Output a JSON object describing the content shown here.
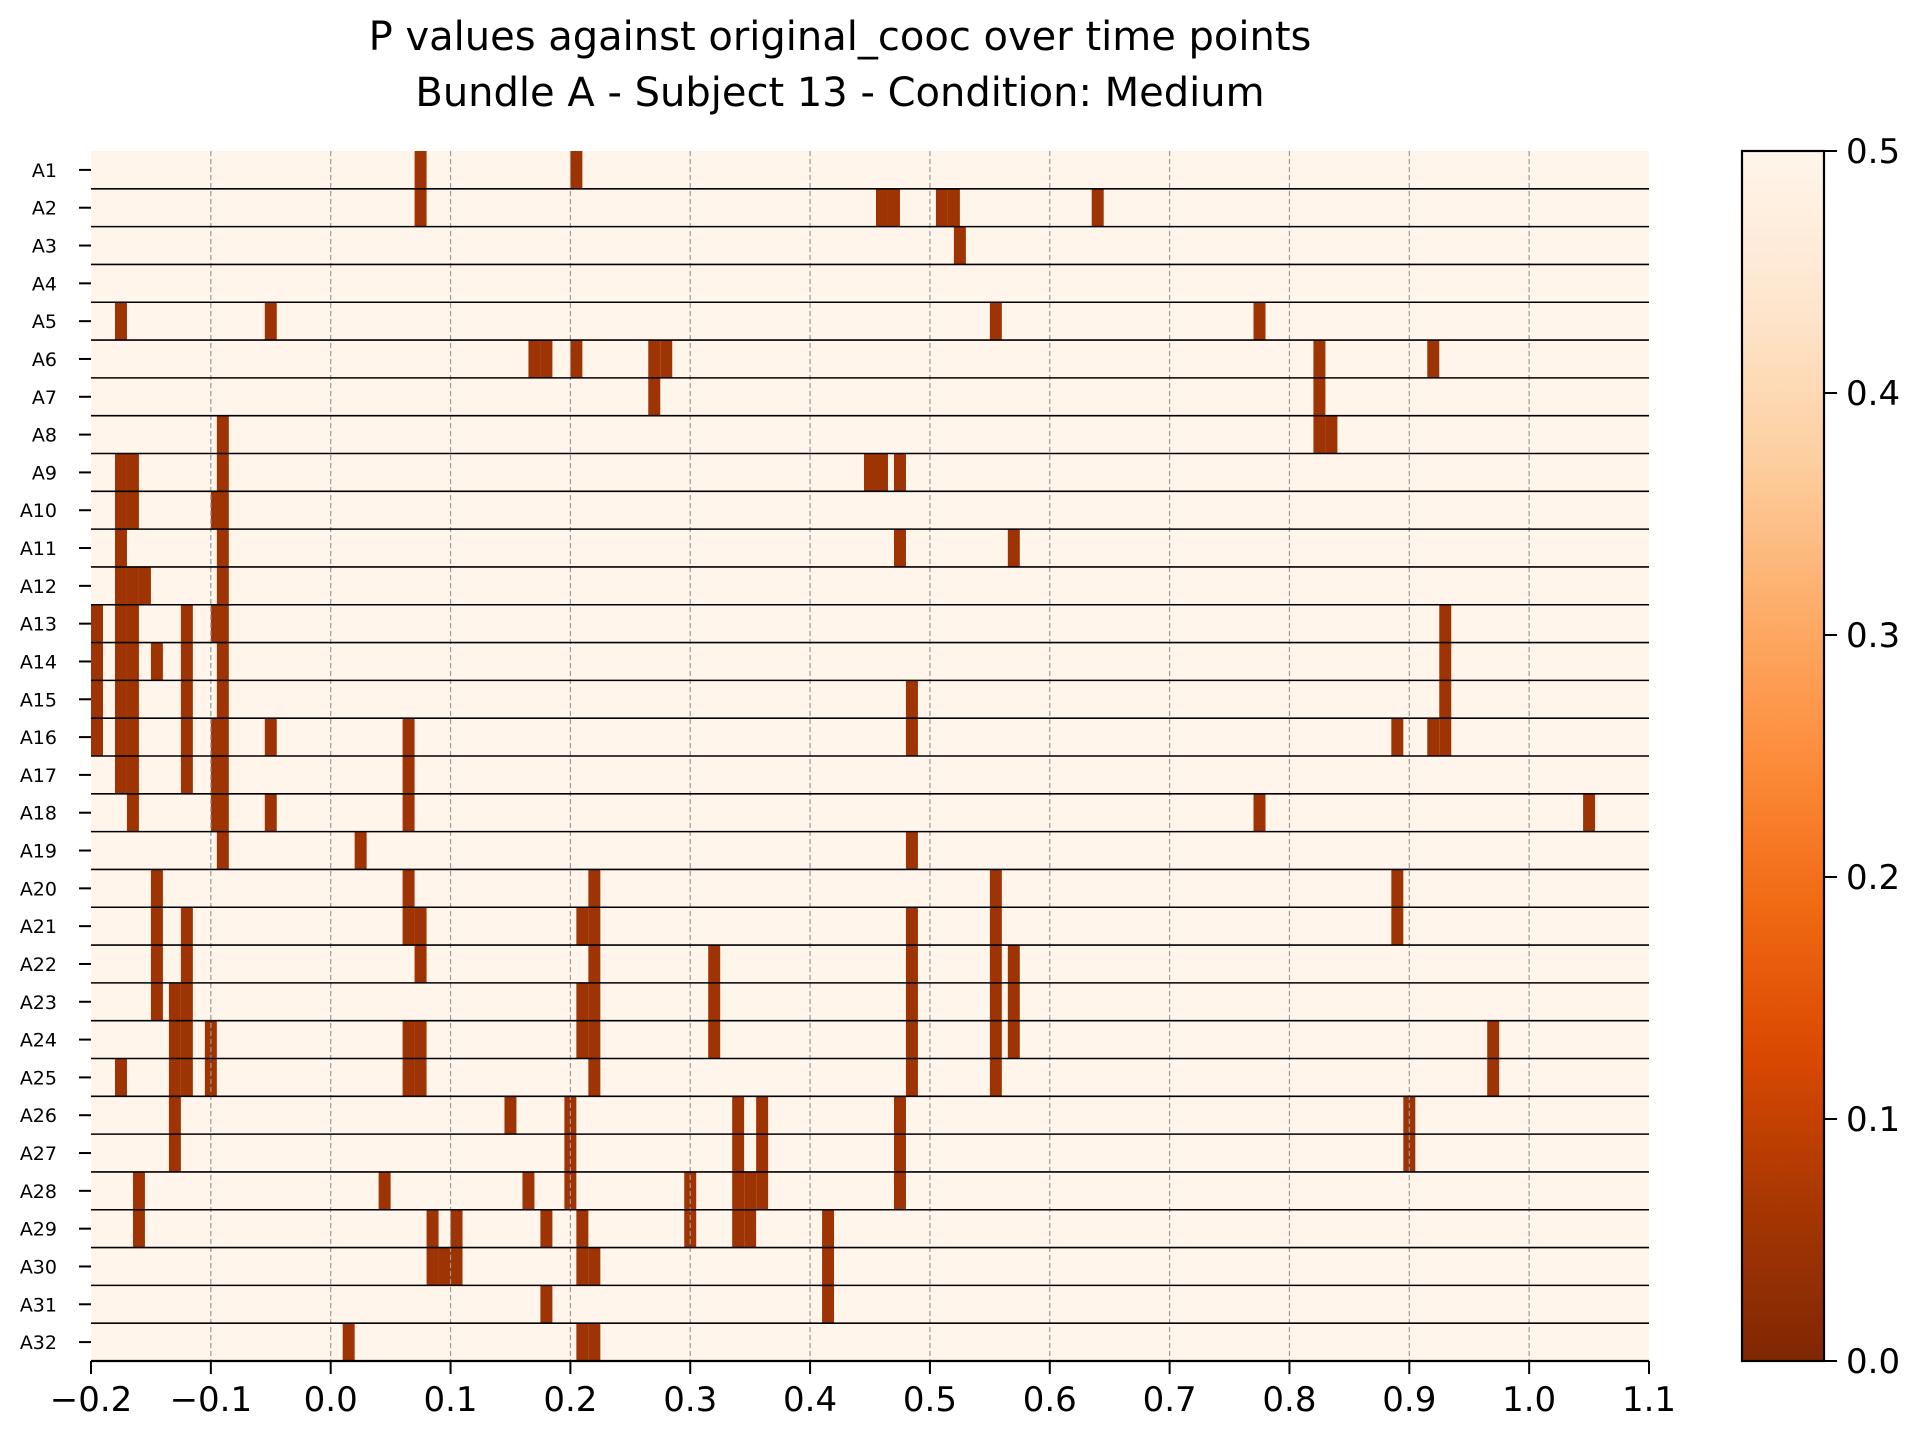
{
  "chart_data": {
    "type": "heatmap",
    "title": "P values against original_cooc over time points",
    "subtitle": "Bundle A - Subject 13 - Condition: Medium",
    "xlabel": "",
    "ylabel": "",
    "xlim": [
      -0.2,
      1.1
    ],
    "x_ticks": [
      "−0.2",
      "−0.1",
      "0.0",
      "0.1",
      "0.2",
      "0.3",
      "0.4",
      "0.5",
      "0.6",
      "0.7",
      "0.8",
      "0.9",
      "1.0",
      "1.1"
    ],
    "x_tick_values": [
      -0.2,
      -0.1,
      0.0,
      0.1,
      0.2,
      0.3,
      0.4,
      0.5,
      0.6,
      0.7,
      0.8,
      0.9,
      1.0,
      1.1
    ],
    "grid": "vertical dashed",
    "rows": [
      "A1",
      "A2",
      "A3",
      "A4",
      "A5",
      "A6",
      "A7",
      "A8",
      "A9",
      "A10",
      "A11",
      "A12",
      "A13",
      "A14",
      "A15",
      "A16",
      "A17",
      "A18",
      "A19",
      "A20",
      "A21",
      "A22",
      "A23",
      "A24",
      "A25",
      "A26",
      "A27",
      "A28",
      "A29",
      "A30",
      "A31",
      "A32"
    ],
    "baseline_value": 0.5,
    "significant_cells": [
      [
        0.075,
        0.205
      ],
      [
        0.075,
        0.46,
        0.47,
        0.51,
        0.52,
        0.64
      ],
      [
        0.525
      ],
      [],
      [
        -0.175,
        -0.05,
        0.555,
        0.775
      ],
      [
        0.17,
        0.18,
        0.205,
        0.27,
        0.28,
        0.825,
        0.92
      ],
      [
        0.27,
        0.825
      ],
      [
        -0.09,
        0.825,
        0.835
      ],
      [
        -0.175,
        -0.165,
        -0.09,
        0.45,
        0.46,
        0.475
      ],
      [
        -0.175,
        -0.165,
        -0.095,
        -0.09
      ],
      [
        -0.175,
        -0.09,
        0.475,
        0.57
      ],
      [
        -0.175,
        -0.165,
        -0.155,
        -0.09
      ],
      [
        -0.195,
        -0.175,
        -0.165,
        -0.12,
        -0.095,
        -0.09,
        0.93
      ],
      [
        -0.195,
        -0.175,
        -0.165,
        -0.145,
        -0.12,
        -0.09,
        0.93
      ],
      [
        -0.195,
        -0.175,
        -0.165,
        -0.12,
        -0.09,
        0.485,
        0.93
      ],
      [
        -0.195,
        -0.175,
        -0.165,
        -0.12,
        -0.095,
        -0.09,
        -0.05,
        0.065,
        0.485,
        0.89,
        0.92,
        0.93
      ],
      [
        -0.175,
        -0.165,
        -0.12,
        -0.095,
        -0.09,
        0.065
      ],
      [
        -0.165,
        -0.095,
        -0.09,
        -0.05,
        0.065,
        0.775,
        1.05
      ],
      [
        -0.09,
        0.025,
        0.485
      ],
      [
        -0.145,
        0.065,
        0.22,
        0.555,
        0.89
      ],
      [
        -0.145,
        -0.12,
        0.065,
        0.075,
        0.21,
        0.22,
        0.485,
        0.555,
        0.89
      ],
      [
        -0.145,
        -0.12,
        0.075,
        0.22,
        0.32,
        0.485,
        0.555,
        0.57
      ],
      [
        -0.145,
        -0.13,
        -0.12,
        0.21,
        0.22,
        0.32,
        0.485,
        0.555,
        0.57
      ],
      [
        -0.13,
        -0.12,
        -0.1,
        0.065,
        0.075,
        0.21,
        0.22,
        0.32,
        0.485,
        0.555,
        0.57,
        0.97
      ],
      [
        -0.175,
        -0.13,
        -0.12,
        -0.1,
        0.065,
        0.075,
        0.22,
        0.485,
        0.555,
        0.97
      ],
      [
        -0.13,
        0.15,
        0.2,
        0.34,
        0.36,
        0.475,
        0.9
      ],
      [
        -0.13,
        0.2,
        0.34,
        0.36,
        0.475,
        0.9
      ],
      [
        -0.16,
        0.045,
        0.165,
        0.2,
        0.3,
        0.34,
        0.35,
        0.36,
        0.475
      ],
      [
        -0.16,
        0.085,
        0.105,
        0.18,
        0.21,
        0.3,
        0.34,
        0.35,
        0.415
      ],
      [
        0.085,
        0.095,
        0.105,
        0.21,
        0.22,
        0.415
      ],
      [
        0.18,
        0.415
      ],
      [
        0.015,
        0.21,
        0.22
      ]
    ],
    "significant_value": 0.05,
    "bin_width": 0.01,
    "colorbar": {
      "range": [
        0.0,
        0.5
      ],
      "ticks": [
        "0.0",
        "0.1",
        "0.2",
        "0.3",
        "0.4",
        "0.5"
      ],
      "tick_values": [
        0.0,
        0.1,
        0.2,
        0.3,
        0.4,
        0.5
      ],
      "colormap": "Oranges_r",
      "stops": [
        "#7f2704",
        "#a63603",
        "#d94801",
        "#f16913",
        "#fd8d3c",
        "#fdae6b",
        "#fdd0a2",
        "#fee6ce",
        "#fff5eb"
      ]
    },
    "colors": {
      "cell_high": "#fff5eb",
      "cell_low": "#8b2f05",
      "row_separator": "#000000",
      "grid": "#9a9a9a"
    }
  }
}
